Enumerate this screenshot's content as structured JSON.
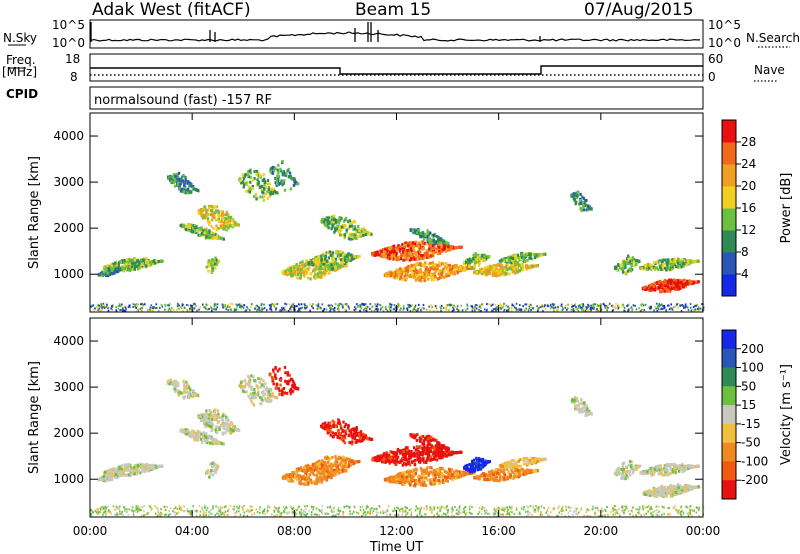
{
  "header": {
    "radar": "Adak West (fitACF)",
    "beam": "Beam 15",
    "date": "07/Aug/2015"
  },
  "strip_labels": {
    "nsky": "N.Sky",
    "nsearch": "N.Search",
    "freq": "Freq.",
    "mhz": "[MHz]",
    "nave": "Nave",
    "cpid": "CPID",
    "cpid_value": "normalsound (fast) -157 RF",
    "noise_ticks": [
      "10^5",
      "10^0"
    ],
    "freq_ticks": [
      "18",
      "8"
    ],
    "nave_ticks": [
      "60",
      "0"
    ]
  },
  "chart_data": [
    {
      "type": "heatmap",
      "title": "",
      "xlabel": "",
      "ylabel": "Slant Range [km]",
      "xlim": [
        0,
        24
      ],
      "ylim": [
        180,
        4500
      ],
      "x_ticks": [],
      "y_ticks": [
        "1000",
        "2000",
        "3000",
        "4000"
      ],
      "colorbar_label": "Power [dB]",
      "colorbar_ticks": [
        "4",
        "8",
        "12",
        "16",
        "20",
        "24",
        "28"
      ],
      "colors": [
        "#1428e6",
        "#2a56b8",
        "#2e8b57",
        "#6cc040",
        "#f0d020",
        "#f0a020",
        "#f06a1a",
        "#e81010"
      ]
    },
    {
      "type": "heatmap",
      "title": "",
      "xlabel": "Time UT",
      "ylabel": "Slant Range [km]",
      "xlim": [
        0,
        24
      ],
      "ylim": [
        180,
        4500
      ],
      "x_ticks": [
        "00:00",
        "04:00",
        "08:00",
        "12:00",
        "16:00",
        "20:00",
        "00:00"
      ],
      "y_ticks": [
        "1000",
        "2000",
        "3000",
        "4000"
      ],
      "colorbar_label": "Velocity [m s⁻¹]",
      "colorbar_ticks": [
        "200",
        "100",
        "50",
        "15",
        "-15",
        "-50",
        "-100",
        "-200"
      ],
      "colors": [
        "#1428e6",
        "#2a56b8",
        "#2e8b57",
        "#6cc040",
        "#c8c8c0",
        "#f0c040",
        "#f08a20",
        "#f05a10",
        "#e81010"
      ]
    }
  ]
}
